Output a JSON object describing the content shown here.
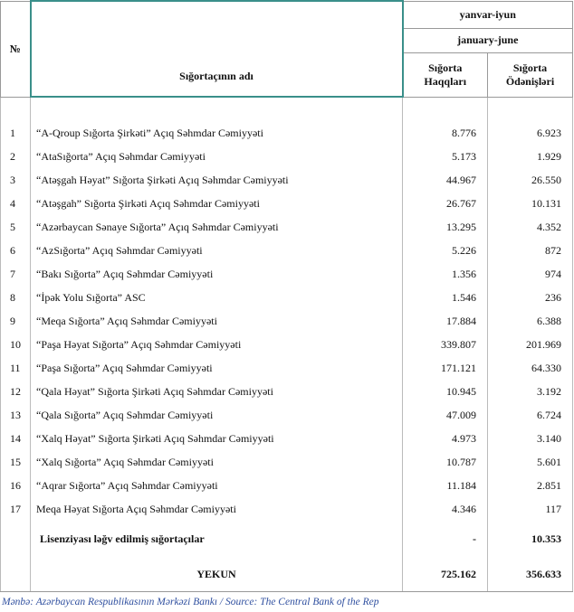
{
  "header": {
    "number": "№",
    "name": "Sığortaçının adı",
    "period_az": "yanvar-iyun",
    "period_en": "january-june",
    "col_premiums": "Sığorta Haqqları",
    "col_payments": "Sığorta Ödənişləri"
  },
  "table": {
    "rows": [
      [
        "1",
        "“A-Qroup Sığorta Şirkəti” Açıq Səhmdar Cəmiyyəti",
        "8.776",
        "6.923"
      ],
      [
        "2",
        "“AtaSığorta” Açıq Səhmdar Cəmiyyəti",
        "5.173",
        "1.929"
      ],
      [
        "3",
        "“Atəşgah Həyat” Sığorta Şirkəti Açıq Səhmdar Cəmiyyəti",
        "44.967",
        "26.550"
      ],
      [
        "4",
        "“Atəşgah” Sığorta Şirkəti Açıq Səhmdar Cəmiyyəti",
        "26.767",
        "10.131"
      ],
      [
        "5",
        "“Azərbaycan Sənaye Sığorta” Açıq Səhmdar Cəmiyyəti",
        "13.295",
        "4.352"
      ],
      [
        "6",
        "“AzSığorta” Açıq Səhmdar Cəmiyyəti",
        "5.226",
        "872"
      ],
      [
        "7",
        "“Bakı Sığorta” Açıq Səhmdar Cəmiyyəti",
        "1.356",
        "974"
      ],
      [
        "8",
        "“İpək Yolu Sığorta” ASC",
        "1.546",
        "236"
      ],
      [
        "9",
        "“Meqa Sığorta” Açıq Səhmdar Cəmiyyəti",
        "17.884",
        "6.388"
      ],
      [
        "10",
        "“Paşa Həyat Sığorta” Açıq Səhmdar Cəmiyyəti",
        "339.807",
        "201.969"
      ],
      [
        "11",
        "“Paşa Sığorta” Açıq Səhmdar Cəmiyyəti",
        "171.121",
        "64.330"
      ],
      [
        "12",
        "“Qala Həyat” Sığorta Şirkəti Açıq Səhmdar Cəmiyyəti",
        "10.945",
        "3.192"
      ],
      [
        "13",
        "“Qala Sığorta” Açıq Səhmdar Cəmiyyəti",
        "47.009",
        "6.724"
      ],
      [
        "14",
        "“Xalq Həyat” Sığorta Şirkəti Açıq Səhmdar Cəmiyyəti",
        "4.973",
        "3.140"
      ],
      [
        "15",
        "“Xalq Sığorta” Açıq Səhmdar Cəmiyyəti",
        "10.787",
        "5.601"
      ],
      [
        "16",
        "“Aqrar Sığorta” Açıq Səhmdar Cəmiyyəti",
        "11.184",
        "2.851"
      ],
      [
        "17",
        "Meqa Həyat Sığorta Açıq Səhmdar Cəmiyyəti",
        "4.346",
        "117"
      ]
    ],
    "revoked": {
      "label": "Lisenziyası ləğv edilmiş sığortaçılar",
      "premiums": "-",
      "payments": "10.353"
    },
    "total": {
      "label": "YEKUN",
      "premiums": "725.162",
      "payments": "356.633"
    }
  },
  "source": "Mənbə: Azərbaycan Respublikasının Mərkəzi Bankı / Source: The Central Bank of the Rep"
}
